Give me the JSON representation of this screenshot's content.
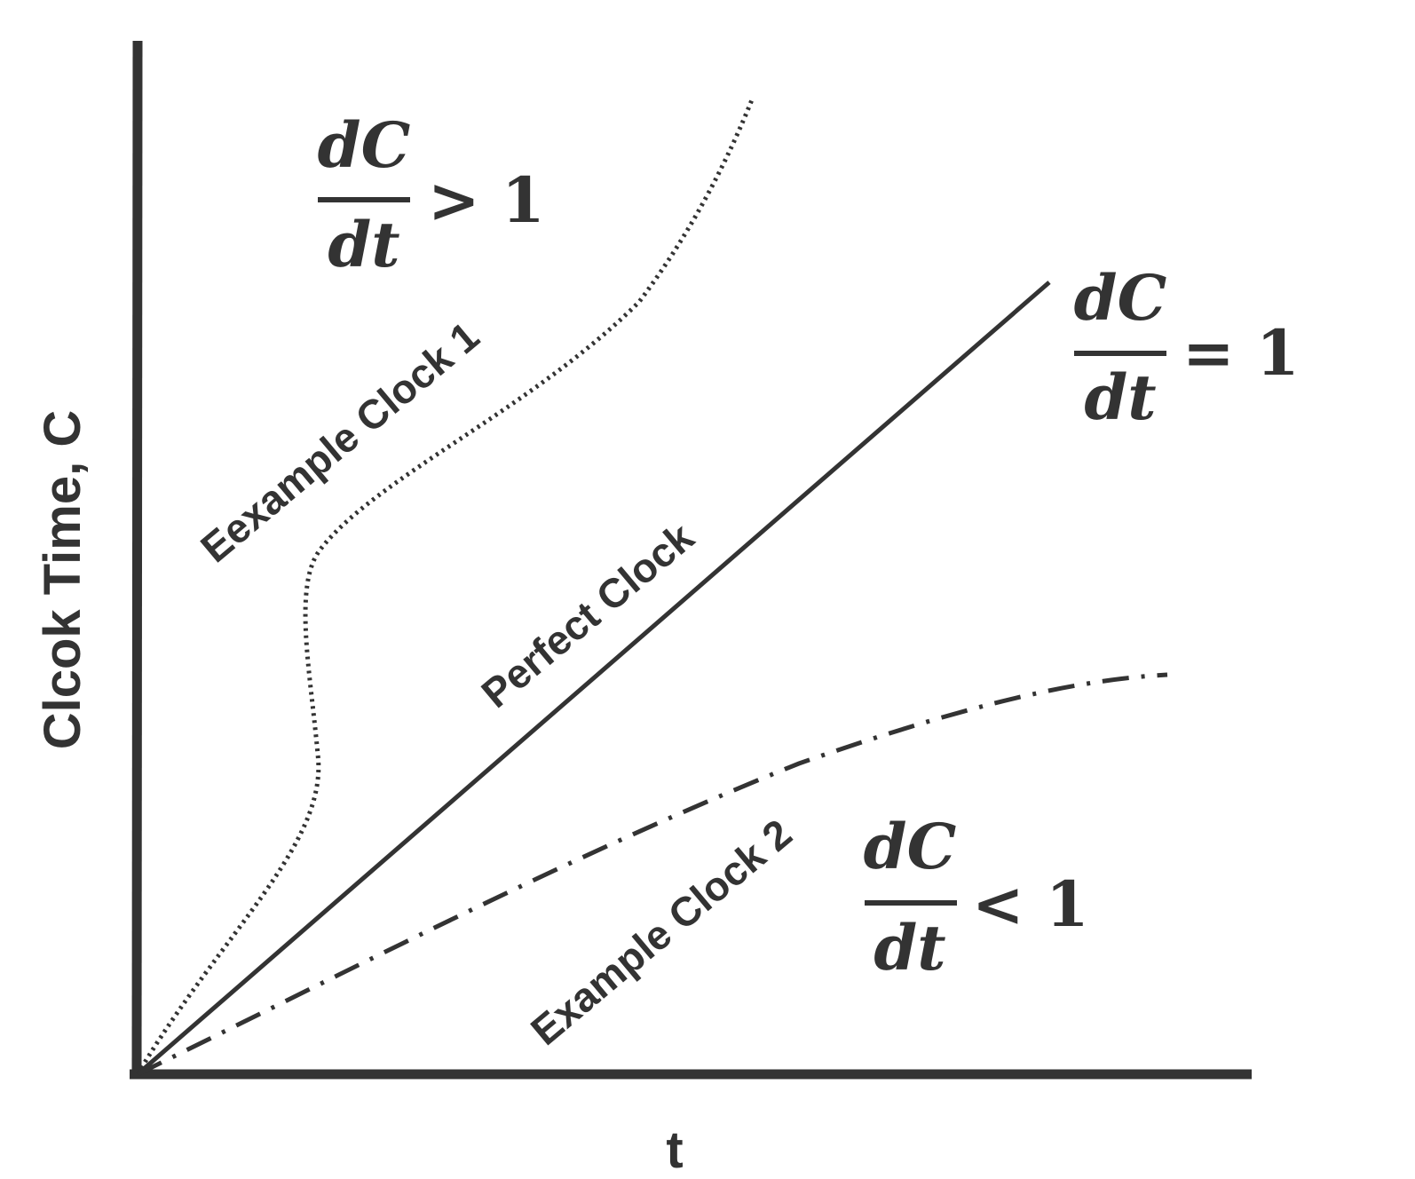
{
  "axes": {
    "y_label": "Clcok Time, C",
    "x_label": "t"
  },
  "curves": [
    {
      "label": "Eexample Clock 1"
    },
    {
      "label": "Perfect Clock"
    },
    {
      "label": "Example Clock 2"
    }
  ],
  "formulas": [
    {
      "numerator": "dC",
      "denominator": "dt",
      "relation": "> 1"
    },
    {
      "numerator": "dC",
      "denominator": "dt",
      "relation": "= 1"
    },
    {
      "numerator": "dC",
      "denominator": "dt",
      "relation": "< 1"
    }
  ]
}
